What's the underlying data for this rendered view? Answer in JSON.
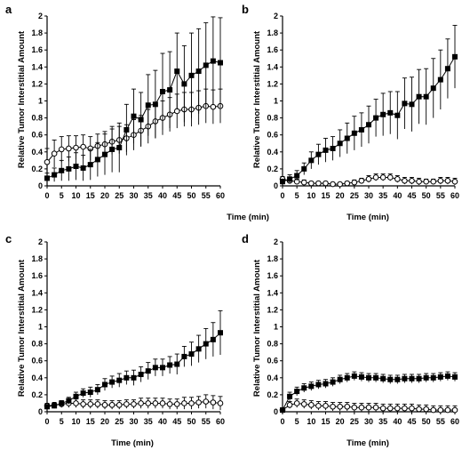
{
  "figure": {
    "background": "#ffffff",
    "marker_color": "#000000"
  },
  "chart_data": [
    {
      "panel": "a",
      "type": "line",
      "xlabel": "Time (min)",
      "ylabel": "Relative Tumor Interstitial Amount",
      "xlim": [
        0,
        60
      ],
      "ylim": [
        0,
        2
      ],
      "xticks": [
        "0",
        "5",
        "10",
        "15",
        "20",
        "25",
        "30",
        "35",
        "40",
        "45",
        "50",
        "55",
        "60"
      ],
      "yticks": [
        "0",
        "0.2",
        "0.4",
        "0.6",
        "0.8",
        "1",
        "1.2",
        "1.4",
        "1.6",
        "1.8",
        "2"
      ],
      "grid": false,
      "legend": "none",
      "series": [
        {
          "marker": "filled-square",
          "x": [
            0,
            2.5,
            5,
            7.5,
            10,
            12.5,
            15,
            17.5,
            20,
            22.5,
            25,
            27.5,
            30,
            32.5,
            35,
            37.5,
            40,
            42.5,
            45,
            47.5,
            50,
            52.5,
            55,
            57.5,
            60
          ],
          "y": [
            0.09,
            0.13,
            0.18,
            0.2,
            0.23,
            0.21,
            0.25,
            0.31,
            0.37,
            0.43,
            0.45,
            0.66,
            0.82,
            0.78,
            0.95,
            0.96,
            1.11,
            1.13,
            1.35,
            1.2,
            1.3,
            1.35,
            1.42,
            1.47,
            1.45
          ],
          "err": [
            0.06,
            0.08,
            0.12,
            0.14,
            0.16,
            0.15,
            0.18,
            0.2,
            0.24,
            0.27,
            0.29,
            0.3,
            0.32,
            0.32,
            0.36,
            0.4,
            0.45,
            0.45,
            0.45,
            0.45,
            0.5,
            0.5,
            0.5,
            0.52,
            0.53
          ]
        },
        {
          "marker": "open-circle",
          "x": [
            0,
            2.5,
            5,
            7.5,
            10,
            12.5,
            15,
            17.5,
            20,
            22.5,
            25,
            27.5,
            30,
            32.5,
            35,
            37.5,
            40,
            42.5,
            45,
            47.5,
            50,
            52.5,
            55,
            57.5,
            60
          ],
          "y": [
            0.28,
            0.38,
            0.43,
            0.44,
            0.45,
            0.46,
            0.44,
            0.47,
            0.49,
            0.52,
            0.54,
            0.56,
            0.6,
            0.65,
            0.7,
            0.76,
            0.8,
            0.84,
            0.88,
            0.9,
            0.9,
            0.92,
            0.94,
            0.93,
            0.94
          ],
          "err": [
            0.16,
            0.16,
            0.15,
            0.15,
            0.14,
            0.14,
            0.14,
            0.14,
            0.15,
            0.15,
            0.16,
            0.16,
            0.18,
            0.18,
            0.2,
            0.2,
            0.2,
            0.2,
            0.2,
            0.2,
            0.2,
            0.2,
            0.2,
            0.2,
            0.2
          ]
        }
      ]
    },
    {
      "panel": "b",
      "type": "line",
      "xlabel": "Time (min)",
      "ylabel": "Relative Tumor Interstitial Amount",
      "xlim": [
        0,
        60
      ],
      "ylim": [
        0,
        2
      ],
      "xticks": [
        "0",
        "5",
        "10",
        "15",
        "20",
        "25",
        "30",
        "35",
        "40",
        "45",
        "50",
        "55",
        "60"
      ],
      "yticks": [
        "0",
        "0.2",
        "0.4",
        "0.6",
        "0.8",
        "1",
        "1.2",
        "1.4",
        "1.6",
        "1.8",
        "2"
      ],
      "grid": false,
      "legend": "none",
      "series": [
        {
          "marker": "filled-square",
          "x": [
            0,
            2.5,
            5,
            7.5,
            10,
            12.5,
            15,
            17.5,
            20,
            22.5,
            25,
            27.5,
            30,
            32.5,
            35,
            37.5,
            40,
            42.5,
            45,
            47.5,
            50,
            52.5,
            55,
            57.5,
            60
          ],
          "y": [
            0.05,
            0.08,
            0.12,
            0.2,
            0.3,
            0.37,
            0.42,
            0.44,
            0.5,
            0.56,
            0.62,
            0.66,
            0.72,
            0.8,
            0.84,
            0.86,
            0.83,
            0.97,
            0.96,
            1.05,
            1.05,
            1.15,
            1.25,
            1.38,
            1.52
          ],
          "err": [
            0.03,
            0.05,
            0.06,
            0.07,
            0.1,
            0.12,
            0.14,
            0.14,
            0.16,
            0.18,
            0.2,
            0.2,
            0.22,
            0.22,
            0.25,
            0.25,
            0.28,
            0.3,
            0.32,
            0.32,
            0.33,
            0.35,
            0.35,
            0.35,
            0.37
          ]
        },
        {
          "marker": "open-circle",
          "x": [
            0,
            2.5,
            5,
            7.5,
            10,
            12.5,
            15,
            17.5,
            20,
            22.5,
            25,
            27.5,
            30,
            32.5,
            35,
            37.5,
            40,
            42.5,
            45,
            47.5,
            50,
            52.5,
            55,
            57.5,
            60
          ],
          "y": [
            0.08,
            0.06,
            0.05,
            0.04,
            0.03,
            0.03,
            0.03,
            0.02,
            0.02,
            0.03,
            0.04,
            0.06,
            0.08,
            0.1,
            0.1,
            0.1,
            0.08,
            0.06,
            0.06,
            0.05,
            0.05,
            0.05,
            0.06,
            0.06,
            0.05
          ],
          "err": [
            0.03,
            0.03,
            0.03,
            0.03,
            0.02,
            0.02,
            0.02,
            0.02,
            0.02,
            0.02,
            0.03,
            0.03,
            0.04,
            0.04,
            0.04,
            0.04,
            0.04,
            0.04,
            0.04,
            0.04,
            0.03,
            0.03,
            0.04,
            0.04,
            0.04
          ]
        }
      ]
    },
    {
      "panel": "c",
      "type": "line",
      "xlabel": "Time (min)",
      "ylabel": "Relative Tumor Interstitial Amount",
      "xlim": [
        0,
        60
      ],
      "ylim": [
        0,
        2
      ],
      "xticks": [
        "0",
        "5",
        "10",
        "15",
        "20",
        "25",
        "30",
        "35",
        "40",
        "45",
        "50",
        "55",
        "60"
      ],
      "yticks": [
        "0",
        "0.2",
        "0.4",
        "0.6",
        "0.8",
        "1",
        "1.2",
        "1.4",
        "1.6",
        "1.8",
        "2"
      ],
      "grid": false,
      "legend": "none",
      "series": [
        {
          "marker": "filled-square",
          "x": [
            0,
            2.5,
            5,
            7.5,
            10,
            12.5,
            15,
            17.5,
            20,
            22.5,
            25,
            27.5,
            30,
            32.5,
            35,
            37.5,
            40,
            42.5,
            45,
            47.5,
            50,
            52.5,
            55,
            57.5,
            60
          ],
          "y": [
            0.06,
            0.07,
            0.1,
            0.13,
            0.18,
            0.22,
            0.23,
            0.26,
            0.32,
            0.35,
            0.37,
            0.4,
            0.4,
            0.44,
            0.48,
            0.52,
            0.52,
            0.55,
            0.56,
            0.65,
            0.68,
            0.74,
            0.8,
            0.85,
            0.93
          ],
          "err": [
            0.02,
            0.03,
            0.03,
            0.04,
            0.05,
            0.05,
            0.06,
            0.06,
            0.07,
            0.07,
            0.08,
            0.08,
            0.09,
            0.09,
            0.1,
            0.1,
            0.1,
            0.1,
            0.12,
            0.12,
            0.14,
            0.16,
            0.18,
            0.2,
            0.26
          ]
        },
        {
          "marker": "open-circle",
          "x": [
            0,
            2.5,
            5,
            7.5,
            10,
            12.5,
            15,
            17.5,
            20,
            22.5,
            25,
            27.5,
            30,
            32.5,
            35,
            37.5,
            40,
            42.5,
            45,
            47.5,
            50,
            52.5,
            55,
            57.5,
            60
          ],
          "y": [
            0.07,
            0.08,
            0.09,
            0.1,
            0.1,
            0.09,
            0.09,
            0.09,
            0.08,
            0.08,
            0.08,
            0.09,
            0.09,
            0.1,
            0.1,
            0.1,
            0.1,
            0.09,
            0.09,
            0.1,
            0.1,
            0.11,
            0.12,
            0.11,
            0.1
          ],
          "err": [
            0.03,
            0.03,
            0.04,
            0.05,
            0.05,
            0.05,
            0.05,
            0.05,
            0.05,
            0.05,
            0.05,
            0.05,
            0.05,
            0.06,
            0.06,
            0.06,
            0.06,
            0.06,
            0.06,
            0.07,
            0.07,
            0.07,
            0.08,
            0.08,
            0.08
          ]
        }
      ]
    },
    {
      "panel": "d",
      "type": "line",
      "xlabel": "Time (min)",
      "ylabel": "Relative Tumor Interstitial Amount",
      "xlim": [
        0,
        60
      ],
      "ylim": [
        0,
        2
      ],
      "xticks": [
        "0",
        "5",
        "10",
        "15",
        "20",
        "25",
        "30",
        "35",
        "40",
        "45",
        "50",
        "55",
        "60"
      ],
      "yticks": [
        "0",
        "0.2",
        "0.4",
        "0.6",
        "0.8",
        "1",
        "1.2",
        "1.4",
        "1.6",
        "1.8",
        "2"
      ],
      "grid": false,
      "legend": "none",
      "series": [
        {
          "marker": "filled-square",
          "x": [
            0,
            2.5,
            5,
            7.5,
            10,
            12.5,
            15,
            17.5,
            20,
            22.5,
            25,
            27.5,
            30,
            32.5,
            35,
            37.5,
            40,
            42.5,
            45,
            47.5,
            50,
            52.5,
            55,
            57.5,
            60
          ],
          "y": [
            0.02,
            0.18,
            0.24,
            0.28,
            0.3,
            0.32,
            0.33,
            0.35,
            0.38,
            0.4,
            0.42,
            0.41,
            0.4,
            0.4,
            0.39,
            0.38,
            0.38,
            0.39,
            0.39,
            0.39,
            0.4,
            0.4,
            0.41,
            0.42,
            0.41
          ],
          "err": [
            0.02,
            0.05,
            0.05,
            0.05,
            0.05,
            0.05,
            0.05,
            0.05,
            0.05,
            0.05,
            0.05,
            0.05,
            0.05,
            0.05,
            0.05,
            0.05,
            0.05,
            0.05,
            0.05,
            0.05,
            0.05,
            0.05,
            0.05,
            0.05,
            0.05
          ]
        },
        {
          "marker": "open-circle",
          "x": [
            0,
            2.5,
            5,
            7.5,
            10,
            12.5,
            15,
            17.5,
            20,
            22.5,
            25,
            27.5,
            30,
            32.5,
            35,
            37.5,
            40,
            42.5,
            45,
            47.5,
            50,
            52.5,
            55,
            57.5,
            60
          ],
          "y": [
            0.02,
            0.08,
            0.1,
            0.09,
            0.08,
            0.07,
            0.07,
            0.06,
            0.06,
            0.06,
            0.05,
            0.05,
            0.05,
            0.05,
            0.04,
            0.04,
            0.04,
            0.04,
            0.04,
            0.03,
            0.03,
            0.02,
            0.02,
            0.02,
            0.02
          ],
          "err": [
            0.02,
            0.04,
            0.05,
            0.05,
            0.05,
            0.05,
            0.05,
            0.05,
            0.05,
            0.05,
            0.05,
            0.05,
            0.05,
            0.05,
            0.05,
            0.05,
            0.05,
            0.05,
            0.05,
            0.05,
            0.05,
            0.05,
            0.05,
            0.05,
            0.05
          ]
        }
      ]
    }
  ]
}
